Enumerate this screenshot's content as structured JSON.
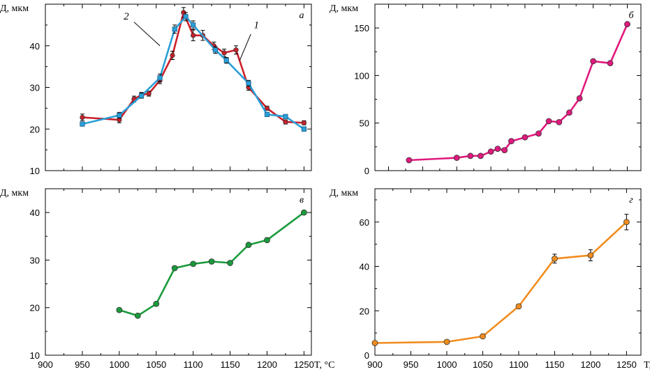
{
  "chart_data": [
    {
      "type": "line",
      "panel": "а",
      "ylabel": "Д, мкм",
      "xlabel": "",
      "xlim": [
        900,
        1260
      ],
      "ylim": [
        10,
        50
      ],
      "xticks": [],
      "yticks": [
        10,
        20,
        30,
        40
      ],
      "series": [
        {
          "name": "1",
          "color": "#cc1f2a",
          "marker": "circle",
          "errorbars": true,
          "x": [
            950,
            1000,
            1020,
            1030,
            1040,
            1055,
            1072,
            1087,
            1100,
            1113,
            1128,
            1142,
            1158,
            1175,
            1200,
            1225,
            1250
          ],
          "y": [
            22.8,
            22.2,
            27.2,
            28.2,
            28.5,
            31.7,
            37.7,
            48,
            42.5,
            42.5,
            40,
            38.3,
            39,
            30,
            25,
            21.7,
            21.5
          ],
          "err": [
            0.8,
            0.7,
            0.7,
            0.6,
            0.6,
            0.8,
            1,
            1.2,
            1.3,
            1.2,
            0.9,
            0.9,
            1,
            0.7,
            0.5,
            0.5,
            0.5
          ]
        },
        {
          "name": "2",
          "color": "#2a9fd8",
          "marker": "square",
          "errorbars": true,
          "x": [
            950,
            1000,
            1030,
            1055,
            1075,
            1090,
            1100,
            1130,
            1145,
            1175,
            1200,
            1225,
            1250
          ],
          "y": [
            21.2,
            23.3,
            28,
            32.3,
            44,
            47,
            45,
            39,
            36.5,
            31,
            23.5,
            23,
            20
          ],
          "err": [
            0.5,
            0.7,
            0.6,
            0.9,
            1,
            1,
            1,
            0.8,
            0.7,
            0.7,
            0.5,
            0.4,
            0.5
          ]
        }
      ]
    },
    {
      "type": "line",
      "panel": "б",
      "ylabel": "Д, мкм",
      "xlabel": "",
      "xlim": [
        880,
        1270
      ],
      "ylim": [
        0,
        175
      ],
      "xticks": [],
      "yticks": [
        0,
        50,
        100,
        150
      ],
      "series": [
        {
          "name": "",
          "color": "#e0197d",
          "marker": "circle",
          "errorbars": false,
          "x": [
            930,
            1000,
            1020,
            1035,
            1050,
            1060,
            1070,
            1080,
            1100,
            1120,
            1135,
            1150,
            1165,
            1180,
            1200,
            1225,
            1250
          ],
          "y": [
            11,
            13.5,
            15.5,
            15.5,
            20,
            23,
            21.5,
            31,
            35,
            39,
            52,
            51,
            61,
            76,
            115,
            113,
            154
          ],
          "err": []
        }
      ]
    },
    {
      "type": "line",
      "panel": "в",
      "ylabel": "Д, мкм",
      "xlabel": "T, °C",
      "xlim": [
        900,
        1260
      ],
      "ylim": [
        10,
        45
      ],
      "xticks": [
        900,
        950,
        1000,
        1050,
        1100,
        1150,
        1200,
        1250
      ],
      "yticks": [
        10,
        20,
        30,
        40
      ],
      "series": [
        {
          "name": "",
          "color": "#1a9a3c",
          "marker": "circle",
          "errorbars": false,
          "x": [
            1000,
            1025,
            1050,
            1075,
            1100,
            1125,
            1150,
            1175,
            1200,
            1250
          ],
          "y": [
            19.5,
            18.3,
            20.8,
            28.3,
            29.2,
            29.7,
            29.4,
            33.2,
            34.2,
            40
          ],
          "err": []
        }
      ]
    },
    {
      "type": "line",
      "panel": "г",
      "ylabel": "Д, мкм",
      "xlabel": "T, °C",
      "xlim": [
        900,
        1270
      ],
      "ylim": [
        0,
        75
      ],
      "xticks": [
        900,
        950,
        1000,
        1050,
        1100,
        1150,
        1200,
        1250
      ],
      "yticks": [
        0,
        20,
        40,
        60
      ],
      "series": [
        {
          "name": "",
          "color": "#f08c1e",
          "marker": "circle",
          "errorbars": true,
          "x": [
            900,
            1000,
            1050,
            1100,
            1150,
            1200,
            1250
          ],
          "y": [
            5.5,
            6,
            8.5,
            22,
            43.5,
            45,
            60
          ],
          "err": [
            0,
            0,
            0,
            0.8,
            2,
            2.5,
            3.5
          ]
        }
      ]
    }
  ]
}
